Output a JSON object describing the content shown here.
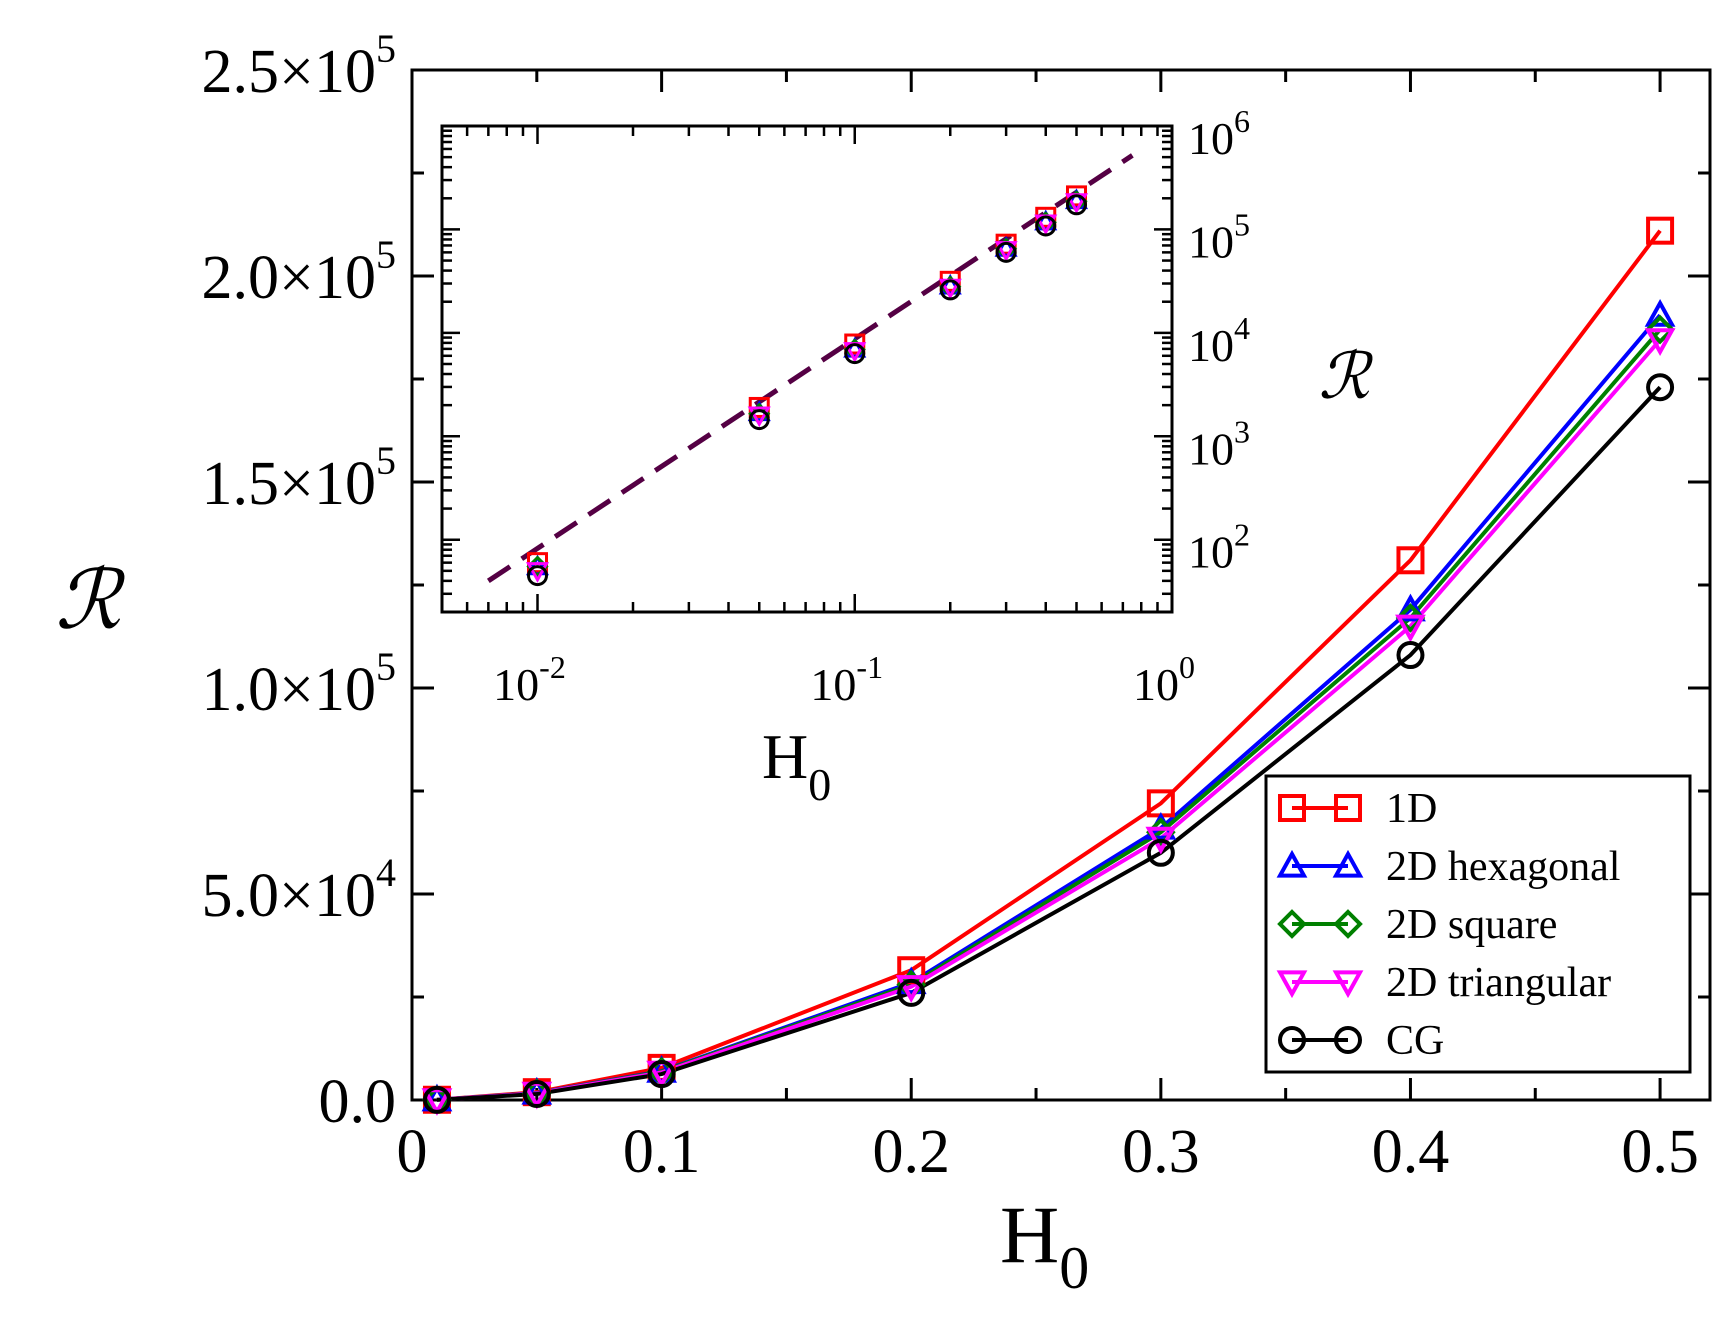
{
  "chart_data": [
    {
      "type": "line",
      "role": "main",
      "xlabel": "H",
      "xlabel_sub": "0",
      "ylabel": "ℛ",
      "xlim": [
        0,
        0.52
      ],
      "ylim": [
        0,
        250000
      ],
      "x_ticks": [
        {
          "v": 0,
          "label": "0"
        },
        {
          "v": 0.1,
          "label": "0.1"
        },
        {
          "v": 0.2,
          "label": "0.2"
        },
        {
          "v": 0.3,
          "label": "0.3"
        },
        {
          "v": 0.4,
          "label": "0.4"
        },
        {
          "v": 0.5,
          "label": "0.5"
        }
      ],
      "y_ticks": [
        {
          "v": 0,
          "mantissa": "0.0",
          "exp": ""
        },
        {
          "v": 50000,
          "mantissa": "5.0×10",
          "exp": "4"
        },
        {
          "v": 100000,
          "mantissa": "1.0×10",
          "exp": "5"
        },
        {
          "v": 150000,
          "mantissa": "1.5×10",
          "exp": "5"
        },
        {
          "v": 200000,
          "mantissa": "2.0×10",
          "exp": "5"
        },
        {
          "v": 250000,
          "mantissa": "2.5×10",
          "exp": "5"
        }
      ],
      "x": [
        0.01,
        0.05,
        0.1,
        0.2,
        0.3,
        0.4,
        0.5
      ],
      "series": [
        {
          "name": "1D",
          "marker": "square",
          "color": "#ff0000",
          "values": [
            60,
            1900,
            7800,
            31500,
            72000,
            131000,
            211000
          ]
        },
        {
          "name": "2D hexagonal",
          "marker": "triangle-up",
          "color": "#0000ff",
          "values": [
            55,
            1700,
            7000,
            28500,
            66000,
            119000,
            190500
          ]
        },
        {
          "name": "2D square",
          "marker": "diamond",
          "color": "#008000",
          "values": [
            55,
            1650,
            6900,
            28000,
            65000,
            117000,
            187000
          ]
        },
        {
          "name": "2D triangular",
          "marker": "triangle-down",
          "color": "#ff00ff",
          "values": [
            50,
            1600,
            6700,
            27500,
            63500,
            115000,
            184500
          ]
        },
        {
          "name": "CG",
          "marker": "circle",
          "color": "#000000",
          "values": [
            45,
            1450,
            6300,
            26000,
            60000,
            108000,
            173000
          ]
        }
      ],
      "legend_position": "bottom-right"
    },
    {
      "type": "scatter",
      "role": "inset",
      "xscale": "log",
      "yscale": "log",
      "xlabel": "H",
      "xlabel_sub": "0",
      "ylabel": "ℛ",
      "xlim": [
        0.005,
        1
      ],
      "ylim": [
        20,
        1000000
      ],
      "x_ticks": [
        {
          "v": 0.01,
          "base": "10",
          "exp": "-2"
        },
        {
          "v": 0.1,
          "base": "10",
          "exp": "-1"
        },
        {
          "v": 1,
          "base": "10",
          "exp": "0"
        }
      ],
      "y_ticks": [
        {
          "v": 100,
          "base": "10",
          "exp": "2"
        },
        {
          "v": 1000,
          "base": "10",
          "exp": "3"
        },
        {
          "v": 10000,
          "base": "10",
          "exp": "4"
        },
        {
          "v": 100000,
          "base": "10",
          "exp": "5"
        },
        {
          "v": 1000000,
          "base": "10",
          "exp": "6"
        }
      ],
      "x": [
        0.01,
        0.05,
        0.1,
        0.2,
        0.3,
        0.4,
        0.5
      ],
      "series": [
        {
          "name": "1D",
          "marker": "square",
          "color": "#ff0000",
          "values": [
            60,
            1900,
            7800,
            31500,
            72000,
            131000,
            211000
          ]
        },
        {
          "name": "2D hexagonal",
          "marker": "triangle-up",
          "color": "#0000ff",
          "values": [
            55,
            1700,
            7000,
            28500,
            66000,
            119000,
            190500
          ]
        },
        {
          "name": "2D square",
          "marker": "diamond",
          "color": "#008000",
          "values": [
            55,
            1650,
            6900,
            28000,
            65000,
            117000,
            187000
          ]
        },
        {
          "name": "2D triangular",
          "marker": "triangle-down",
          "color": "#ff00ff",
          "values": [
            50,
            1600,
            6700,
            27500,
            63500,
            115000,
            184500
          ]
        },
        {
          "name": "CG",
          "marker": "circle",
          "color": "#000000",
          "values": [
            45,
            1450,
            6300,
            26000,
            60000,
            108000,
            173000
          ]
        }
      ],
      "fit_line": {
        "style": "dashed",
        "color": "#550044",
        "x": [
          0.007,
          0.75
        ],
        "y": [
          40,
          520000
        ]
      }
    }
  ]
}
